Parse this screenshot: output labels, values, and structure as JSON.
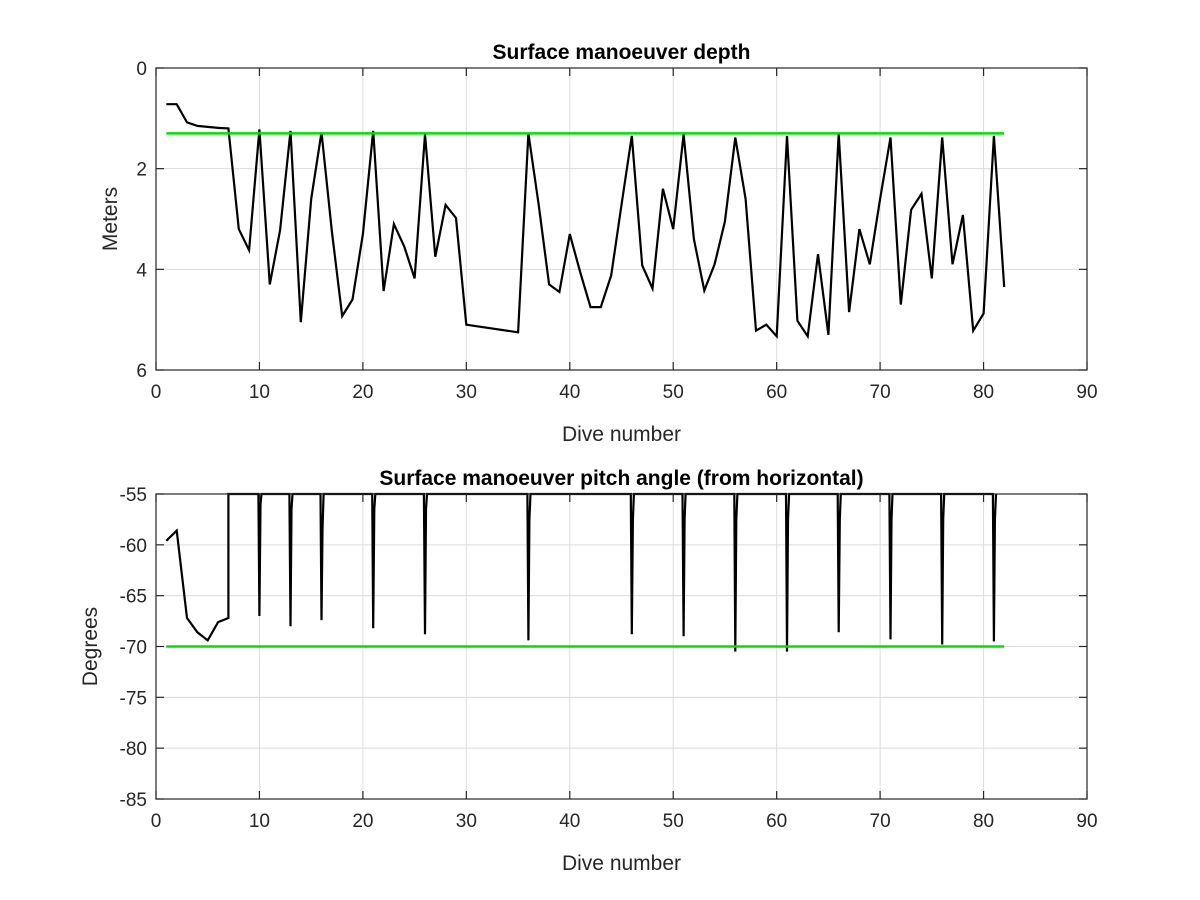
{
  "chart_data": [
    {
      "type": "line",
      "title": "Surface manoeuver depth",
      "xlabel": "Dive number",
      "ylabel": "Meters",
      "xlim": [
        0,
        90
      ],
      "ylim": [
        0,
        6
      ],
      "y_direction": "reversed",
      "grid": true,
      "xticks": [
        "0",
        "10",
        "20",
        "30",
        "40",
        "50",
        "60",
        "70",
        "80",
        "90"
      ],
      "yticks": [
        "0",
        "2",
        "4",
        "6"
      ],
      "series": [
        {
          "color": "#000000",
          "x": [
            1,
            2,
            3,
            4,
            5,
            6,
            7,
            8,
            9,
            10,
            11,
            12,
            13,
            14,
            15,
            16,
            17,
            18,
            19,
            20,
            21,
            22,
            23,
            24,
            25,
            26,
            27,
            28,
            29,
            30,
            35,
            36,
            37,
            38,
            39,
            40,
            41,
            42,
            43,
            44,
            45,
            46,
            47,
            48,
            49,
            50,
            51,
            52,
            53,
            54,
            55,
            56,
            57,
            58,
            59,
            60,
            61,
            62,
            63,
            64,
            65,
            66,
            67,
            68,
            69,
            70,
            71,
            72,
            73,
            74,
            75,
            76,
            77,
            78,
            79,
            80,
            81,
            82
          ],
          "y": [
            0.72,
            0.72,
            1.08,
            1.15,
            1.17,
            1.19,
            1.2,
            3.2,
            3.62,
            1.22,
            4.3,
            3.22,
            1.25,
            5.05,
            2.6,
            1.28,
            3.25,
            4.93,
            4.6,
            3.3,
            1.25,
            4.43,
            3.1,
            3.55,
            4.18,
            1.32,
            3.75,
            2.72,
            2.98,
            5.1,
            5.25,
            1.3,
            2.72,
            4.3,
            4.45,
            3.3,
            4.05,
            4.75,
            4.75,
            4.12,
            2.72,
            1.35,
            3.92,
            4.38,
            2.4,
            3.2,
            1.32,
            3.4,
            4.42,
            3.9,
            3.05,
            1.38,
            2.6,
            5.22,
            5.1,
            5.33,
            1.35,
            5.02,
            5.33,
            3.7,
            5.3,
            1.3,
            4.85,
            3.2,
            3.9,
            2.6,
            1.38,
            4.7,
            2.82,
            2.5,
            4.18,
            1.38,
            3.9,
            2.92,
            5.22,
            4.88,
            1.35,
            4.35
          ]
        },
        {
          "color": "#00e000",
          "x": [
            1,
            82
          ],
          "y": [
            1.3,
            1.3
          ]
        }
      ]
    },
    {
      "type": "line",
      "title": "Surface manoeuver pitch angle (from horizontal)",
      "xlabel": "Dive number",
      "ylabel": "Degrees",
      "xlim": [
        0,
        90
      ],
      "ylim": [
        -85,
        -55
      ],
      "grid": true,
      "xticks": [
        "0",
        "10",
        "20",
        "30",
        "40",
        "50",
        "60",
        "70",
        "80",
        "90"
      ],
      "yticks": [
        "-55",
        "-60",
        "-65",
        "-70",
        "-75",
        "-80",
        "-85"
      ],
      "series": [
        {
          "color": "#000000",
          "x": [
            1,
            2,
            3,
            4,
            5,
            6,
            7,
            7,
            7.2,
            9.9,
            10,
            10.1,
            10.2,
            12.9,
            13,
            13.1,
            13.2,
            15.9,
            16,
            16.1,
            16.2,
            20.9,
            21,
            21.1,
            21.2,
            25.9,
            26,
            26.1,
            26.2,
            35.9,
            36,
            36.1,
            36.2,
            45.9,
            46,
            46.1,
            46.2,
            50.9,
            51,
            51.1,
            51.2,
            55.9,
            56,
            56.1,
            56.2,
            60.9,
            61,
            61.1,
            61.2,
            65.9,
            66,
            66.1,
            66.2,
            70.9,
            71,
            71.1,
            71.2,
            75.9,
            76,
            76.1,
            76.2,
            80.9,
            81,
            81.1,
            81.2
          ],
          "y": [
            -59.6,
            -58.6,
            -67.2,
            -68.6,
            -69.4,
            -67.6,
            -67.2,
            -55,
            -55,
            -55,
            -67,
            -56,
            -55,
            -55,
            -68,
            -56.5,
            -55,
            -55,
            -67.4,
            -58.5,
            -55,
            -55,
            -68.2,
            -56.5,
            -55,
            -55,
            -68.8,
            -56.5,
            -55,
            -55,
            -69.4,
            -57.5,
            -55,
            -55,
            -68.8,
            -57.5,
            -55,
            -55,
            -69,
            -57.5,
            -55,
            -55,
            -70.5,
            -57.5,
            -55,
            -55,
            -70.5,
            -57.5,
            -55,
            -55,
            -68.6,
            -57.5,
            -55,
            -55,
            -69.3,
            -57.5,
            -55,
            -55,
            -69.8,
            -57.5,
            -55,
            -55,
            -69.5,
            -57.5,
            -55
          ]
        },
        {
          "color": "#00e000",
          "x": [
            1,
            82
          ],
          "y": [
            -70,
            -70
          ]
        }
      ]
    }
  ]
}
